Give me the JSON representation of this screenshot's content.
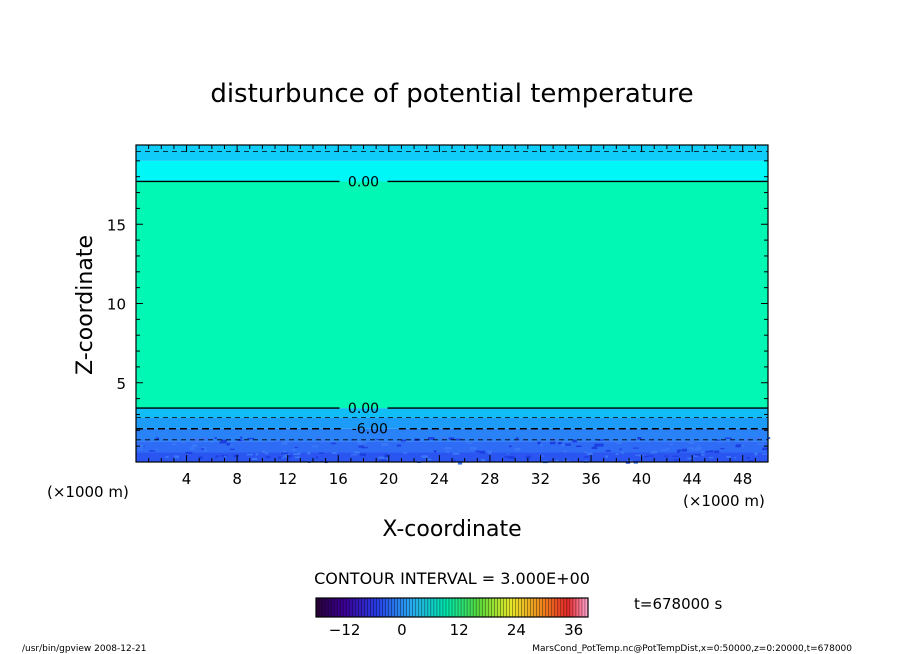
{
  "chart_data": {
    "type": "heatmap",
    "title": "disturbunce of potential temperature",
    "xlabel": "X-coordinate",
    "ylabel": "Z-coordinate",
    "x_unit_left": "(×1000 m)",
    "x_unit_right": "(×1000 m)",
    "xlim": [
      0,
      50
    ],
    "ylim": [
      0,
      20
    ],
    "x_ticks": [
      4,
      8,
      12,
      16,
      20,
      24,
      28,
      32,
      36,
      40,
      44,
      48
    ],
    "y_ticks": [
      5,
      10,
      15
    ],
    "bands": [
      {
        "z0": 0.0,
        "z1": 0.6,
        "color": "#2a55f0"
      },
      {
        "z0": 0.6,
        "z1": 1.3,
        "color": "#2f6cf6"
      },
      {
        "z0": 1.3,
        "z1": 2.1,
        "color": "#2a82f8"
      },
      {
        "z0": 2.1,
        "z1": 2.8,
        "color": "#1c9cf8"
      },
      {
        "z0": 2.8,
        "z1": 3.4,
        "color": "#11bdf6"
      },
      {
        "z0": 3.4,
        "z1": 17.7,
        "color": "#00f7b4"
      },
      {
        "z0": 17.7,
        "z1": 19.0,
        "color": "#00f7f8"
      },
      {
        "z0": 19.0,
        "z1": 20.0,
        "color": "#10ccf8"
      }
    ],
    "contours": [
      {
        "z": 17.7,
        "label": "0.00",
        "label_x": 18.0,
        "style": "solid"
      },
      {
        "z": 3.4,
        "label": "0.00",
        "label_x": 18.0,
        "style": "solid"
      },
      {
        "z": 2.1,
        "label": "-6.00",
        "label_x": 18.5,
        "style": "dashed"
      },
      {
        "z": 2.8,
        "label": "",
        "style": "dashed-thin"
      },
      {
        "z": 1.4,
        "label": "",
        "style": "dashed-thin"
      },
      {
        "z": 19.6,
        "label": "",
        "style": "dashed-thin"
      }
    ],
    "contour_interval_text": "CONTOUR INTERVAL = 3.000E+00",
    "time_text": "t=678000 s",
    "colorbar": {
      "ticks": [
        -12,
        0,
        12,
        24,
        36
      ],
      "range": [
        -18,
        39
      ]
    }
  },
  "footer": {
    "left": "/usr/bin/gpview  2008-12-21",
    "right": "MarsCond_PotTemp.nc@PotTempDist,x=0:50000,z=0:20000,t=678000"
  }
}
